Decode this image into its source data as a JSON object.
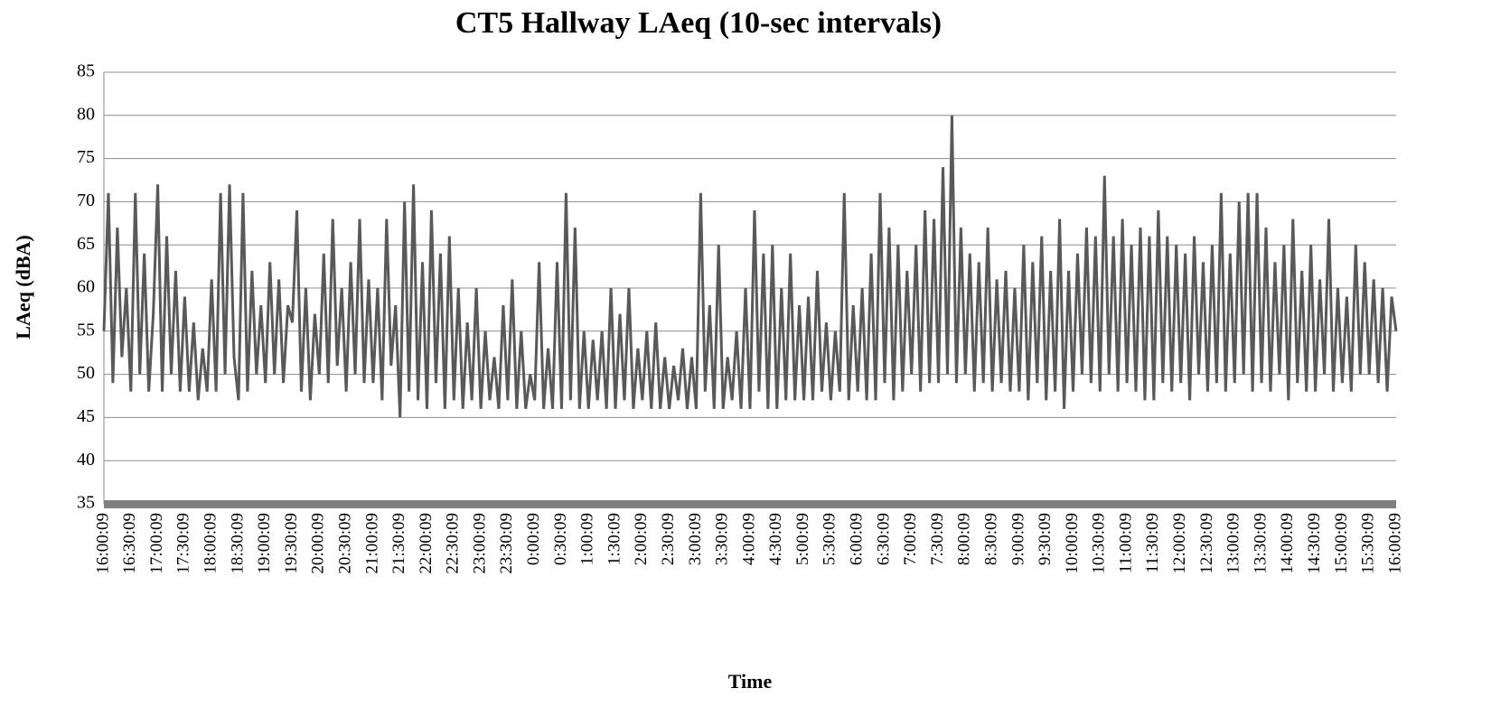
{
  "chart_data": {
    "type": "line",
    "title": "CT5 Hallway LAeq (10-sec intervals)",
    "y_label": "LAeq (dBA)",
    "x_label": "Time",
    "color": "#595959",
    "grid": true,
    "ylim": [
      35,
      85
    ],
    "yticks": [
      35,
      40,
      45,
      50,
      55,
      60,
      65,
      70,
      75,
      80,
      85
    ],
    "categories": [
      "16:00:09",
      null,
      null,
      null,
      null,
      null,
      "16:30:09",
      null,
      null,
      null,
      null,
      null,
      "17:00:09",
      null,
      null,
      null,
      null,
      null,
      "17:30:09",
      null,
      null,
      null,
      null,
      null,
      "18:00:09",
      null,
      null,
      null,
      null,
      null,
      "18:30:09",
      null,
      null,
      null,
      null,
      null,
      "19:00:09",
      null,
      null,
      null,
      null,
      null,
      "19:30:09",
      null,
      null,
      null,
      null,
      null,
      "20:00:09",
      null,
      null,
      null,
      null,
      null,
      "20:30:09",
      null,
      null,
      null,
      null,
      null,
      "21:00:09",
      null,
      null,
      null,
      null,
      null,
      "21:30:09",
      null,
      null,
      null,
      null,
      null,
      "22:00:09",
      null,
      null,
      null,
      null,
      null,
      "22:30:09",
      null,
      null,
      null,
      null,
      null,
      "23:00:09",
      null,
      null,
      null,
      null,
      null,
      "23:30:09",
      null,
      null,
      null,
      null,
      null,
      "0:00:09",
      null,
      null,
      null,
      null,
      null,
      "0:30:09",
      null,
      null,
      null,
      null,
      null,
      "1:00:09",
      null,
      null,
      null,
      null,
      null,
      "1:30:09",
      null,
      null,
      null,
      null,
      null,
      "2:00:09",
      null,
      null,
      null,
      null,
      null,
      "2:30:09",
      null,
      null,
      null,
      null,
      null,
      "3:00:09",
      null,
      null,
      null,
      null,
      null,
      "3:30:09",
      null,
      null,
      null,
      null,
      null,
      "4:00:09",
      null,
      null,
      null,
      null,
      null,
      "4:30:09",
      null,
      null,
      null,
      null,
      null,
      "5:00:09",
      null,
      null,
      null,
      null,
      null,
      "5:30:09",
      null,
      null,
      null,
      null,
      null,
      "6:00:09",
      null,
      null,
      null,
      null,
      null,
      "6:30:09",
      null,
      null,
      null,
      null,
      null,
      "7:00:09",
      null,
      null,
      null,
      null,
      null,
      "7:30:09",
      null,
      null,
      null,
      null,
      null,
      "8:00:09",
      null,
      null,
      null,
      null,
      null,
      "8:30:09",
      null,
      null,
      null,
      null,
      null,
      "9:00:09",
      null,
      null,
      null,
      null,
      null,
      "9:30:09",
      null,
      null,
      null,
      null,
      null,
      "10:00:09",
      null,
      null,
      null,
      null,
      null,
      "10:30:09",
      null,
      null,
      null,
      null,
      null,
      "11:00:09",
      null,
      null,
      null,
      null,
      null,
      "11:30:09",
      null,
      null,
      null,
      null,
      null,
      "12:00:09",
      null,
      null,
      null,
      null,
      null,
      "12:30:09",
      null,
      null,
      null,
      null,
      null,
      "13:00:09",
      null,
      null,
      null,
      null,
      null,
      "13:30:09",
      null,
      null,
      null,
      null,
      null,
      "14:00:09",
      null,
      null,
      null,
      null,
      null,
      "14:30:09",
      null,
      null,
      null,
      null,
      null,
      "15:00:09",
      null,
      null,
      null,
      null,
      null,
      "15:30:09",
      null,
      null,
      null,
      null,
      null,
      "16:00:09"
    ],
    "values": [
      55,
      71,
      49,
      67,
      52,
      60,
      48,
      71,
      50,
      64,
      48,
      57,
      72,
      48,
      66,
      50,
      62,
      48,
      59,
      48,
      56,
      47,
      53,
      48,
      61,
      48,
      71,
      50,
      72,
      52,
      47,
      71,
      48,
      62,
      50,
      58,
      49,
      63,
      50,
      61,
      49,
      58,
      56,
      69,
      48,
      60,
      47,
      57,
      50,
      64,
      49,
      68,
      51,
      60,
      48,
      63,
      50,
      68,
      49,
      61,
      49,
      60,
      47,
      68,
      51,
      58,
      45,
      70,
      48,
      72,
      47,
      63,
      46,
      69,
      49,
      64,
      46,
      66,
      47,
      60,
      46,
      56,
      47,
      60,
      46,
      55,
      47,
      52,
      46,
      58,
      47,
      61,
      46,
      55,
      46,
      50,
      47,
      63,
      46,
      53,
      46,
      63,
      46,
      71,
      47,
      67,
      46,
      55,
      46,
      54,
      47,
      55,
      46,
      60,
      46,
      57,
      47,
      60,
      46,
      53,
      47,
      55,
      46,
      56,
      46,
      52,
      46,
      51,
      47,
      53,
      46,
      52,
      46,
      71,
      48,
      58,
      46,
      65,
      46,
      52,
      47,
      55,
      46,
      60,
      46,
      69,
      48,
      64,
      46,
      65,
      46,
      60,
      47,
      64,
      47,
      58,
      47,
      59,
      47,
      62,
      48,
      56,
      47,
      55,
      48,
      71,
      47,
      58,
      48,
      60,
      47,
      64,
      47,
      71,
      49,
      67,
      47,
      65,
      48,
      62,
      50,
      65,
      48,
      69,
      49,
      68,
      49,
      74,
      50,
      80,
      49,
      67,
      50,
      64,
      48,
      63,
      49,
      67,
      48,
      61,
      49,
      62,
      48,
      60,
      48,
      65,
      47,
      63,
      49,
      66,
      47,
      62,
      48,
      68,
      46,
      62,
      48,
      64,
      50,
      67,
      49,
      66,
      48,
      73,
      50,
      66,
      48,
      68,
      49,
      65,
      48,
      67,
      47,
      66,
      47,
      69,
      49,
      66,
      48,
      65,
      49,
      64,
      47,
      66,
      50,
      63,
      48,
      65,
      49,
      71,
      48,
      64,
      49,
      70,
      50,
      71,
      48,
      71,
      49,
      67,
      48,
      63,
      50,
      65,
      47,
      68,
      49,
      62,
      48,
      65,
      48,
      61,
      50,
      68,
      48,
      60,
      49,
      59,
      48,
      65,
      50,
      63,
      50,
      61,
      49,
      60,
      48,
      59,
      55
    ]
  }
}
